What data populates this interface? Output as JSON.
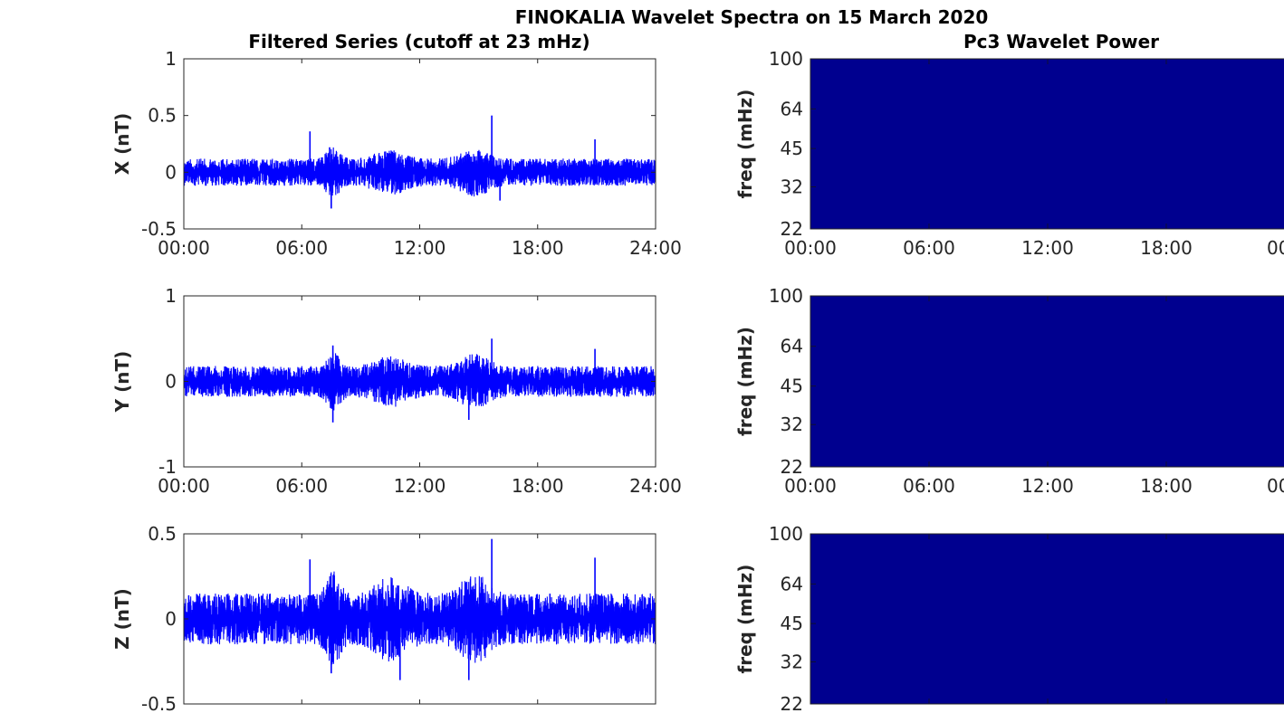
{
  "figure": {
    "title": "FINOKALIA Wavelet Spectra on 15 March 2020",
    "left_column_title": "Filtered Series (cutoff at 23 mHz)",
    "right_column_title": "Pc3 Wavelet Power"
  },
  "colors": {
    "series_line": "#0000ff",
    "wavelet_background": "#00008f",
    "axes": "#262626",
    "text": "#000000"
  },
  "chart_data": [
    {
      "type": "line",
      "panel": "x-component",
      "ylabel": "X (nT)",
      "xlabel": "",
      "x_ticks": [
        "00:00",
        "06:00",
        "12:00",
        "18:00",
        "24:00"
      ],
      "xlim_hours": [
        0,
        24
      ],
      "ylim": [
        -0.5,
        1
      ],
      "y_ticks": [
        -0.5,
        0,
        0.5,
        1
      ],
      "y_tick_labels": [
        "-0.5",
        "0",
        "0.5",
        "1"
      ],
      "series": [
        {
          "typical_amplitude_nT": 0.12,
          "peaks": [
            {
              "time": "06:25",
              "value": 0.36
            },
            {
              "time": "07:25",
              "value": 0.22
            },
            {
              "time": "07:30",
              "value": -0.32
            },
            {
              "time": "15:40",
              "value": 0.5
            },
            {
              "time": "16:05",
              "value": -0.25
            },
            {
              "time": "20:55",
              "value": 0.29
            }
          ]
        }
      ]
    },
    {
      "type": "line",
      "panel": "y-component",
      "ylabel": "Y (nT)",
      "xlabel": "",
      "x_ticks": [
        "00:00",
        "06:00",
        "12:00",
        "18:00",
        "24:00"
      ],
      "xlim_hours": [
        0,
        24
      ],
      "ylim": [
        -1,
        1
      ],
      "y_ticks": [
        -1,
        0,
        1
      ],
      "y_tick_labels": [
        "-1",
        "0",
        "1"
      ],
      "series": [
        {
          "typical_amplitude_nT": 0.18,
          "peaks": [
            {
              "time": "07:35",
              "value": 0.42
            },
            {
              "time": "07:35",
              "value": -0.48
            },
            {
              "time": "14:30",
              "value": -0.45
            },
            {
              "time": "15:40",
              "value": 0.5
            },
            {
              "time": "20:55",
              "value": 0.38
            }
          ]
        }
      ]
    },
    {
      "type": "line",
      "panel": "z-component",
      "ylabel": "Z (nT)",
      "xlabel": "",
      "x_ticks": [],
      "xlim_hours": [
        0,
        24
      ],
      "ylim": [
        -0.5,
        0.5
      ],
      "y_ticks": [
        -0.5,
        0,
        0.5
      ],
      "y_tick_labels": [
        "-0.5",
        "0",
        "0.5"
      ],
      "series": [
        {
          "typical_amplitude_nT": 0.15,
          "peaks": [
            {
              "time": "06:25",
              "value": 0.35
            },
            {
              "time": "07:30",
              "value": -0.32
            },
            {
              "time": "11:00",
              "value": -0.36
            },
            {
              "time": "14:30",
              "value": -0.36
            },
            {
              "time": "15:40",
              "value": 0.47
            },
            {
              "time": "20:55",
              "value": 0.36
            }
          ]
        }
      ]
    },
    {
      "type": "heatmap",
      "panel": "x-wavelet",
      "ylabel": "freq (mHz)",
      "xlabel": "",
      "x_ticks": [
        "00:00",
        "06:00",
        "12:00",
        "18:00",
        "00"
      ],
      "y_ticks": [
        22,
        32,
        45,
        64,
        100
      ],
      "y_tick_labels": [
        "22",
        "32",
        "45",
        "64",
        "100"
      ],
      "y_scale": "log",
      "ylim": [
        22,
        100
      ],
      "power": "uniformly low across the whole panel"
    },
    {
      "type": "heatmap",
      "panel": "y-wavelet",
      "ylabel": "freq (mHz)",
      "xlabel": "",
      "x_ticks": [
        "00:00",
        "06:00",
        "12:00",
        "18:00",
        "00"
      ],
      "y_ticks": [
        22,
        32,
        45,
        64,
        100
      ],
      "y_tick_labels": [
        "22",
        "32",
        "45",
        "64",
        "100"
      ],
      "y_scale": "log",
      "ylim": [
        22,
        100
      ],
      "power": "uniformly low across the whole panel"
    },
    {
      "type": "heatmap",
      "panel": "z-wavelet",
      "ylabel": "freq (mHz)",
      "xlabel": "",
      "x_ticks": [],
      "y_ticks": [
        22,
        32,
        45,
        64,
        100
      ],
      "y_tick_labels": [
        "22",
        "32",
        "45",
        "64",
        "100"
      ],
      "y_scale": "log",
      "ylim": [
        22,
        100
      ],
      "power": "uniformly low across the whole panel"
    }
  ]
}
